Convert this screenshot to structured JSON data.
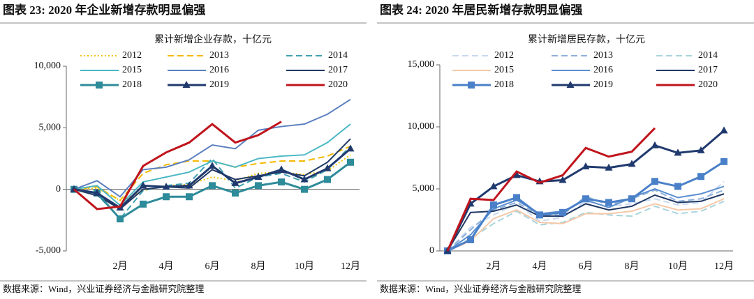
{
  "chart_data": [
    {
      "type": "line",
      "title": "图表 23:  2020 年企业新增存款明显偏强",
      "subtitle": "累计新增企业存款，十亿元",
      "source": "数据来源：Wind，兴业证券经济与金融研究院整理",
      "categories": [
        null,
        null,
        "2月",
        null,
        "4月",
        null,
        "6月",
        null,
        "8月",
        null,
        "10月",
        null,
        "12月"
      ],
      "ylim": [
        -5000,
        10000
      ],
      "yticks": [
        {
          "value": -5000,
          "label": "-5,000"
        },
        0,
        {
          "value": 5000,
          "label": "5,000"
        },
        {
          "value": 10000,
          "label": "10,000"
        }
      ],
      "series": [
        {
          "name": "2012",
          "color": "#f5c400",
          "line_style": "dotted",
          "values": [
            0,
            100,
            -900,
            -100,
            300,
            400,
            1000,
            700,
            1300,
            1400,
            1200,
            1500,
            2800
          ]
        },
        {
          "name": "2013",
          "color": "#f5b800",
          "line_style": "dashed",
          "values": [
            0,
            200,
            -900,
            1300,
            2000,
            2300,
            2300,
            1800,
            2100,
            2300,
            2300,
            2700,
            3500
          ]
        },
        {
          "name": "2014",
          "color": "#3fa0b0",
          "line_style": "dashed",
          "values": [
            0,
            -400,
            -2400,
            -100,
            300,
            500,
            2500,
            100,
            1000,
            1300,
            600,
            1600,
            3500
          ]
        },
        {
          "name": "2015",
          "color": "#4bb8c4",
          "line_style": "solid",
          "values": [
            0,
            300,
            -1300,
            600,
            1000,
            1400,
            2300,
            1800,
            2500,
            2700,
            2800,
            3800,
            5300
          ]
        },
        {
          "name": "2016",
          "color": "#5b7fc0",
          "line_style": "solid",
          "values": [
            0,
            700,
            -600,
            1600,
            1800,
            2400,
            3600,
            3300,
            4800,
            5100,
            5300,
            6100,
            7300
          ]
        },
        {
          "name": "2017",
          "color": "#1f3864",
          "line_style": "solid",
          "values": [
            0,
            -500,
            -1600,
            0,
            200,
            100,
            1600,
            800,
            1100,
            1400,
            1100,
            2200,
            4100
          ]
        },
        {
          "name": "2018",
          "color": "#2e8b9a",
          "line_style": "solid",
          "marker": "square",
          "values": [
            0,
            -300,
            -2400,
            -1200,
            -600,
            -600,
            300,
            -300,
            300,
            600,
            0,
            800,
            2200
          ]
        },
        {
          "name": "2019",
          "color": "#203a6e",
          "line_style": "solid",
          "marker": "triangle",
          "values": [
            0,
            -300,
            -1500,
            300,
            200,
            300,
            1900,
            500,
            1000,
            1600,
            800,
            1700,
            3300
          ]
        },
        {
          "name": "2020",
          "color": "#c0141c",
          "line_style": "solid",
          "values": [
            0,
            -1600,
            -1400,
            1900,
            3000,
            3800,
            5300,
            3800,
            4400,
            5500,
            null,
            null,
            null
          ]
        }
      ]
    },
    {
      "type": "line",
      "title": "图表 24:  2020 年居民新增存款明显偏强",
      "subtitle": "累计新增居民存款，十亿元",
      "source": "数据来源：Wind，兴业证券经济与金融研究院整理",
      "categories": [
        null,
        null,
        "2月",
        null,
        "4月",
        null,
        "6月",
        null,
        "8月",
        null,
        "10月",
        null,
        "12月"
      ],
      "ylim": [
        0,
        15000
      ],
      "yticks": [
        0,
        {
          "value": 5000,
          "label": "5,000"
        },
        {
          "value": 10000,
          "label": "10,000"
        },
        {
          "value": 15000,
          "label": "15,000"
        }
      ],
      "series": [
        {
          "name": "2012",
          "color": "#c8d8f0",
          "line_style": "dashed",
          "values": [
            0,
            1900,
            2900,
            3800,
            2400,
            2700,
            4000,
            3600,
            3800,
            4200,
            3700,
            3900,
            5600
          ]
        },
        {
          "name": "2013",
          "color": "#8eb0dc",
          "line_style": "dashed",
          "values": [
            0,
            1700,
            3300,
            3900,
            2900,
            2900,
            4400,
            3700,
            4200,
            4900,
            4000,
            4200,
            4900
          ]
        },
        {
          "name": "2014",
          "color": "#a8d4dc",
          "line_style": "dashed",
          "values": [
            0,
            1000,
            2200,
            3200,
            2100,
            2300,
            3100,
            2900,
            2800,
            3600,
            3000,
            3200,
            4000
          ]
        },
        {
          "name": "2015",
          "color": "#f5c8a8",
          "line_style": "solid",
          "values": [
            0,
            800,
            2600,
            3300,
            2300,
            2200,
            3000,
            3000,
            3200,
            3800,
            3300,
            3400,
            4200
          ]
        },
        {
          "name": "2016",
          "color": "#5b8fd0",
          "line_style": "solid",
          "values": [
            0,
            1300,
            3400,
            4100,
            3000,
            3200,
            4100,
            3500,
            4300,
            5000,
            4300,
            4600,
            5200
          ]
        },
        {
          "name": "2017",
          "color": "#1f3864",
          "line_style": "solid",
          "values": [
            0,
            3100,
            3200,
            3700,
            2800,
            2800,
            3800,
            3300,
            3600,
            4500,
            3900,
            4000,
            4600
          ]
        },
        {
          "name": "2018",
          "color": "#4a80c8",
          "line_style": "solid",
          "marker": "square",
          "values": [
            0,
            900,
            3700,
            4300,
            2900,
            3100,
            4200,
            3900,
            4200,
            5600,
            5200,
            6000,
            7200
          ]
        },
        {
          "name": "2019",
          "color": "#203a6e",
          "line_style": "solid",
          "marker": "triangle",
          "values": [
            0,
            3800,
            5200,
            6100,
            5600,
            5700,
            6800,
            6700,
            7000,
            8500,
            7900,
            8100,
            9700
          ]
        },
        {
          "name": "2020",
          "color": "#c0141c",
          "line_style": "solid",
          "values": [
            0,
            4200,
            4100,
            6400,
            5500,
            6100,
            8300,
            7600,
            8000,
            9900,
            null,
            null,
            null
          ]
        }
      ]
    }
  ]
}
